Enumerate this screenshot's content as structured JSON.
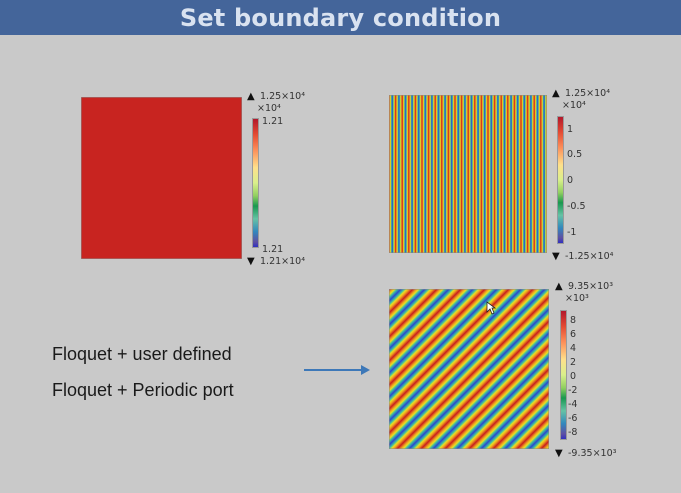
{
  "title": "Set boundary condition",
  "labels": {
    "line1": "Floquet + user defined",
    "line2": "Floquet + Periodic port"
  },
  "colors": {
    "title_bg": "#44659a",
    "background": "#c9c9c9",
    "uniform_fill": "#c82420",
    "arrow": "#3d78b8"
  },
  "plots": [
    {
      "name": "uniform",
      "pattern": "uniform",
      "max_label": "1.25×10⁴",
      "multiplier": "×10⁴",
      "ticks": [
        "1.21",
        "1.21"
      ],
      "min_label": "1.21×10⁴"
    },
    {
      "name": "vertical-stripes",
      "pattern": "vertical stripes",
      "max_label": "1.25×10⁴",
      "multiplier": "×10⁴",
      "ticks": [
        "1",
        "0.5",
        "0",
        "-0.5",
        "-1"
      ],
      "min_label": "-1.25×10⁴"
    },
    {
      "name": "diagonal-stripes",
      "pattern": "diagonal stripes",
      "max_label": "9.35×10³",
      "multiplier": "×10³",
      "ticks": [
        "8",
        "6",
        "4",
        "2",
        "0",
        "-2",
        "-4",
        "-6",
        "-8"
      ],
      "min_label": "-9.35×10³"
    }
  ],
  "icons": {
    "arrow": "right-arrow-icon",
    "cursor": "mouse-cursor-icon"
  }
}
